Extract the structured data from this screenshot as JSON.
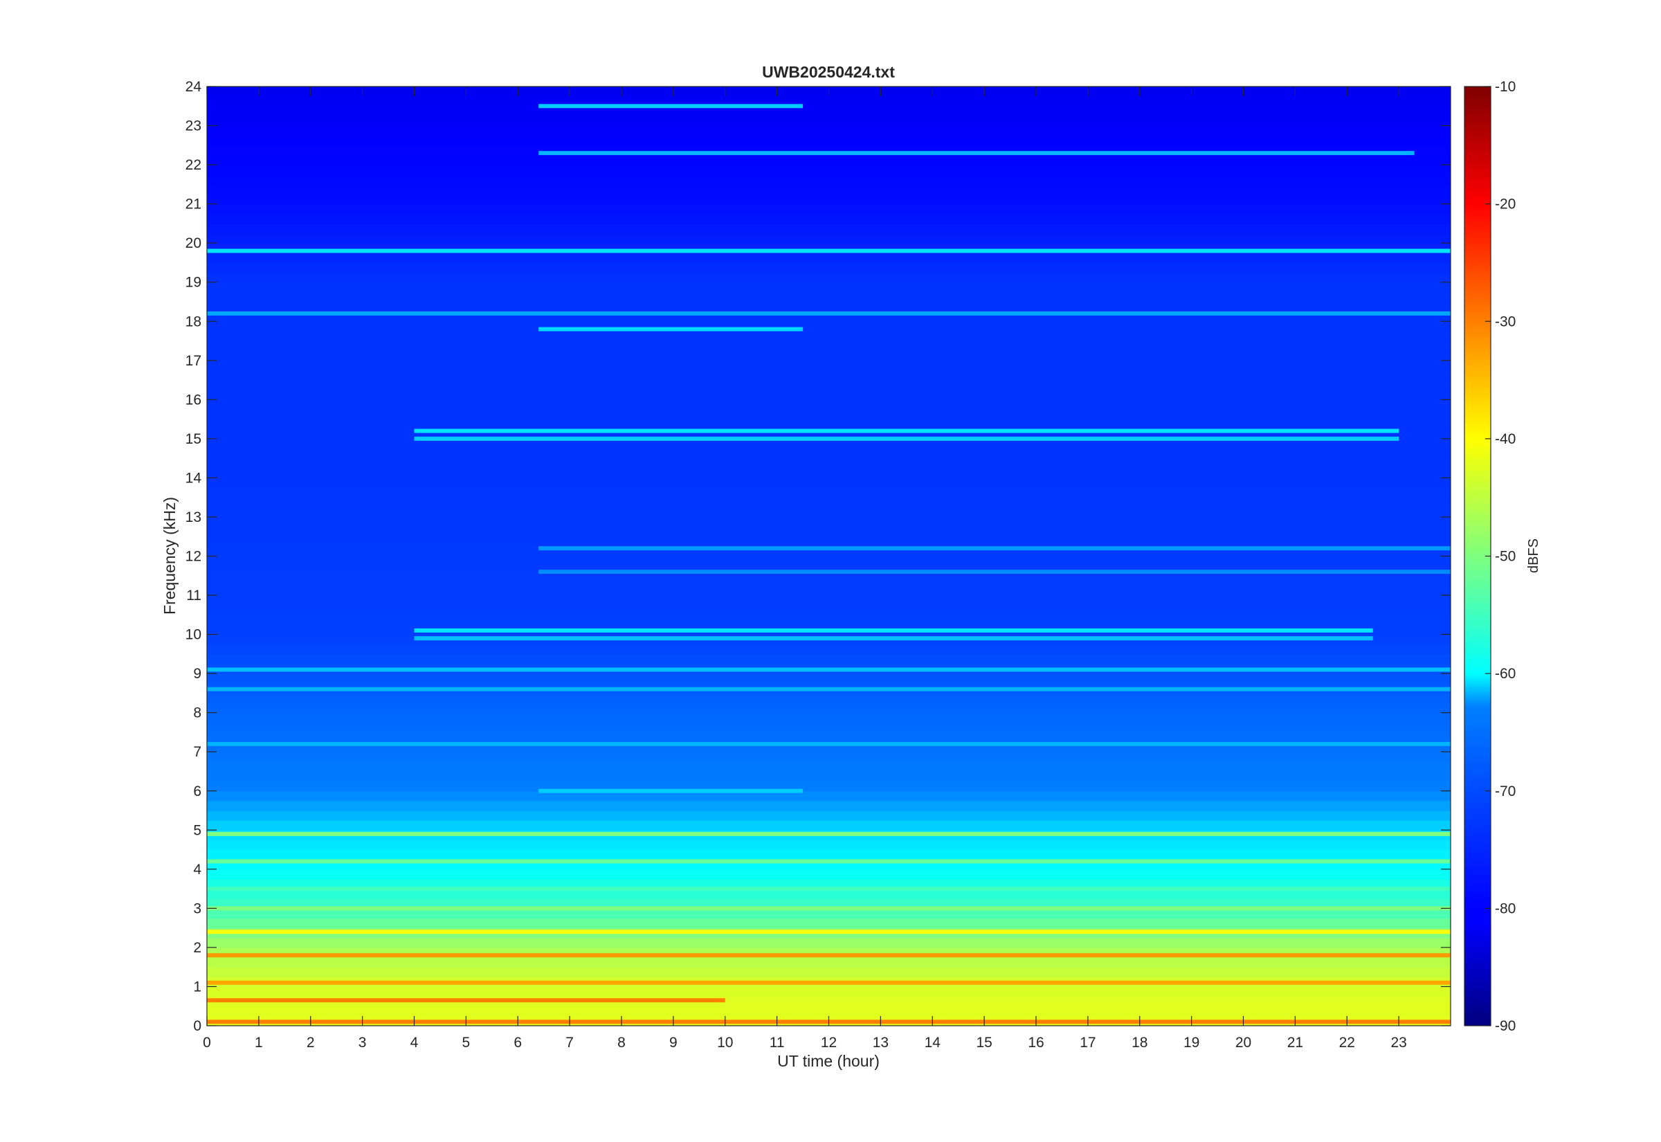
{
  "chart_data": {
    "type": "heatmap",
    "title": "UWB20250424.txt",
    "xlabel": "UT time (hour)",
    "ylabel": "Frequency (kHz)",
    "xlim": [
      0,
      24
    ],
    "ylim": [
      0,
      24
    ],
    "x_ticks": [
      "0",
      "1",
      "2",
      "3",
      "4",
      "5",
      "6",
      "7",
      "8",
      "9",
      "10",
      "11",
      "12",
      "13",
      "14",
      "15",
      "16",
      "17",
      "18",
      "19",
      "20",
      "21",
      "22",
      "23"
    ],
    "y_ticks": [
      "0",
      "1",
      "2",
      "3",
      "4",
      "5",
      "6",
      "7",
      "8",
      "9",
      "10",
      "11",
      "12",
      "13",
      "14",
      "15",
      "16",
      "17",
      "18",
      "19",
      "20",
      "21",
      "22",
      "23",
      "24"
    ],
    "colormap": "jet",
    "colorbar": {
      "label": "dBFS",
      "range": [
        -90,
        -10
      ],
      "ticks": [
        "-10",
        "-20",
        "-30",
        "-40",
        "-50",
        "-60",
        "-70",
        "-80",
        "-90"
      ]
    },
    "background_by_frequency": [
      {
        "khz": 0,
        "dbfs": -42
      },
      {
        "khz": 1,
        "dbfs": -43
      },
      {
        "khz": 2,
        "dbfs": -47
      },
      {
        "khz": 3,
        "dbfs": -55
      },
      {
        "khz": 4,
        "dbfs": -60
      },
      {
        "khz": 5,
        "dbfs": -63
      },
      {
        "khz": 6,
        "dbfs": -70
      },
      {
        "khz": 8,
        "dbfs": -72
      },
      {
        "khz": 10,
        "dbfs": -75
      },
      {
        "khz": 14,
        "dbfs": -76
      },
      {
        "khz": 19,
        "dbfs": -76
      },
      {
        "khz": 21,
        "dbfs": -79
      },
      {
        "khz": 24,
        "dbfs": -81
      }
    ],
    "narrowband_lines": [
      {
        "khz": 19.8,
        "dbfs": -62,
        "t_start": 0,
        "t_end": 24
      },
      {
        "khz": 18.2,
        "dbfs": -67,
        "t_start": 0,
        "t_end": 24
      },
      {
        "khz": 17.8,
        "dbfs": -63,
        "t_start": 6.4,
        "t_end": 11.5
      },
      {
        "khz": 23.5,
        "dbfs": -64,
        "t_start": 6.4,
        "t_end": 11.5
      },
      {
        "khz": 22.3,
        "dbfs": -66,
        "t_start": 6.4,
        "t_end": 23.3
      },
      {
        "khz": 15.2,
        "dbfs": -62,
        "t_start": 4,
        "t_end": 23
      },
      {
        "khz": 15.0,
        "dbfs": -64,
        "t_start": 4,
        "t_end": 23
      },
      {
        "khz": 10.1,
        "dbfs": -62,
        "t_start": 4,
        "t_end": 22.5
      },
      {
        "khz": 9.9,
        "dbfs": -65,
        "t_start": 4,
        "t_end": 22.5
      },
      {
        "khz": 12.2,
        "dbfs": -68,
        "t_start": 6.4,
        "t_end": 24
      },
      {
        "khz": 11.6,
        "dbfs": -69,
        "t_start": 6.4,
        "t_end": 24
      },
      {
        "khz": 6.0,
        "dbfs": -64,
        "t_start": 6.4,
        "t_end": 11.5
      },
      {
        "khz": 9.1,
        "dbfs": -65,
        "t_start": 0,
        "t_end": 24
      },
      {
        "khz": 8.6,
        "dbfs": -66,
        "t_start": 0,
        "t_end": 24
      },
      {
        "khz": 7.2,
        "dbfs": -66,
        "t_start": 0,
        "t_end": 24
      },
      {
        "khz": 4.9,
        "dbfs": -50,
        "t_start": 0,
        "t_end": 24
      },
      {
        "khz": 4.2,
        "dbfs": -52,
        "t_start": 0,
        "t_end": 24
      },
      {
        "khz": 3.5,
        "dbfs": -55,
        "t_start": 0,
        "t_end": 24
      },
      {
        "khz": 3.0,
        "dbfs": -50,
        "t_start": 0,
        "t_end": 24
      },
      {
        "khz": 2.4,
        "dbfs": -40,
        "t_start": 0,
        "t_end": 24
      },
      {
        "khz": 1.8,
        "dbfs": -32,
        "t_start": 0,
        "t_end": 24
      },
      {
        "khz": 1.1,
        "dbfs": -33,
        "t_start": 0,
        "t_end": 24
      },
      {
        "khz": 0.65,
        "dbfs": -30,
        "t_start": 0,
        "t_end": 10
      },
      {
        "khz": 0.1,
        "dbfs": -30,
        "t_start": 0,
        "t_end": 24
      }
    ]
  }
}
